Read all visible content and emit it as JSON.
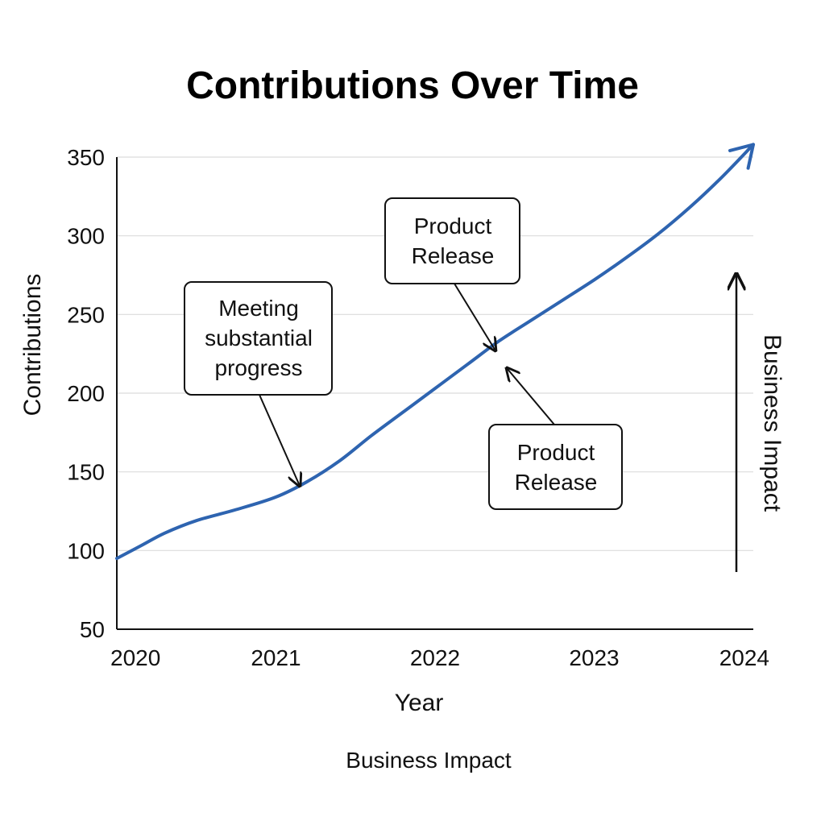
{
  "chart_data": {
    "type": "line",
    "title": "Contributions Over Time",
    "xlabel": "Year",
    "ylabel": "Contributions",
    "secondary_label": "Business Impact",
    "footer": "Business Impact",
    "x_ticks": [
      "2020",
      "2021",
      "2022",
      "2023",
      "2024"
    ],
    "y_ticks": [
      50,
      100,
      150,
      200,
      250,
      300,
      350
    ],
    "xlim": [
      2020,
      2024
    ],
    "ylim": [
      50,
      350
    ],
    "grid": true,
    "series": [
      {
        "x": [
          2020.0,
          2020.15,
          2020.3,
          2020.5,
          2020.75,
          2021.0,
          2021.2,
          2021.4,
          2021.6,
          2021.8,
          2022.0,
          2022.2,
          2022.4,
          2022.6,
          2022.8,
          2023.0,
          2023.2,
          2023.4,
          2023.6,
          2023.8,
          2024.0
        ],
        "y": [
          95,
          103,
          111,
          119,
          126,
          134,
          144,
          157,
          173,
          188,
          203,
          218,
          233,
          246,
          259,
          272,
          286,
          301,
          318,
          337,
          358
        ],
        "color": "#2e64b0"
      }
    ],
    "annotations": [
      {
        "lines": [
          "Meeting",
          "substantial",
          "progress"
        ],
        "target": {
          "x": 2021.15,
          "y": 141
        }
      },
      {
        "lines": [
          "Product",
          "Release"
        ],
        "target": {
          "x": 2022.38,
          "y": 227
        }
      },
      {
        "lines": [
          "Product",
          "Release"
        ],
        "target": {
          "x": 2022.45,
          "y": 216
        }
      }
    ]
  }
}
